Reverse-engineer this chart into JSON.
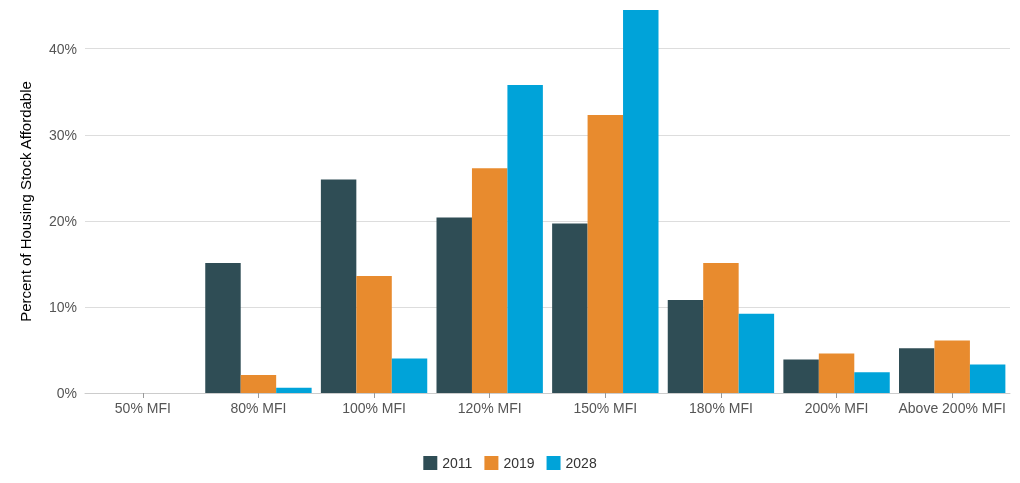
{
  "chart_data": {
    "type": "bar",
    "ylabel": "Percent of Housing Stock Affordable",
    "categories": [
      "50% MFI",
      "80% MFI",
      "100% MFI",
      "120% MFI",
      "150% MFI",
      "180% MFI",
      "200% MFI",
      "Above 200% MFI"
    ],
    "series": [
      {
        "name": "2011",
        "color": "#2f4d55",
        "values": [
          0,
          15.1,
          24.8,
          20.4,
          19.7,
          10.8,
          3.9,
          5.2
        ]
      },
      {
        "name": "2019",
        "color": "#e88b2e",
        "values": [
          0,
          2.1,
          13.6,
          26.1,
          32.3,
          15.1,
          4.6,
          6.1
        ]
      },
      {
        "name": "2028",
        "color": "#00a3d9",
        "values": [
          0,
          0.6,
          4.0,
          35.8,
          44.5,
          9.2,
          2.4,
          3.3
        ]
      }
    ],
    "ylim": [
      0,
      44.5
    ],
    "yticks": [
      {
        "value": 0,
        "label": "0%"
      },
      {
        "value": 10,
        "label": "10%"
      },
      {
        "value": 20,
        "label": "20%"
      },
      {
        "value": 30,
        "label": "30%"
      },
      {
        "value": 40,
        "label": "40%"
      }
    ],
    "grid": "y",
    "legend": "bottom"
  }
}
